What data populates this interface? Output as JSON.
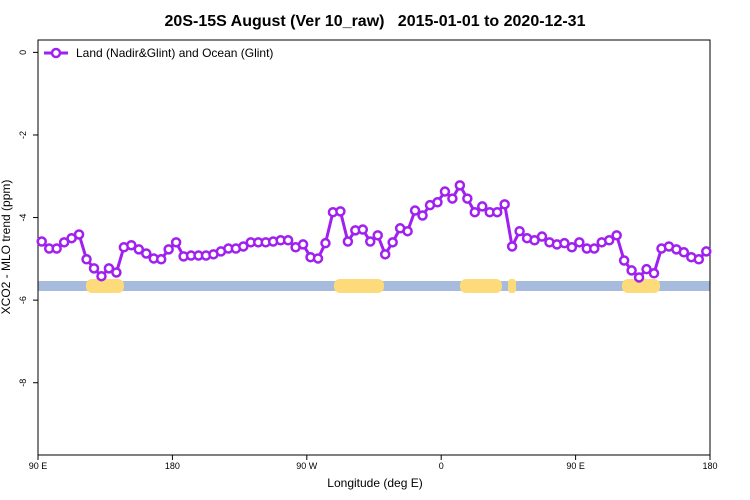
{
  "chart_data": {
    "type": "line",
    "title": "20S-15S August (Ver 10_raw)   2015-01-01 to 2020-12-31",
    "x_label": "Longitude (deg E)",
    "y_label": "XCO2 - MLO trend (ppm)",
    "legend_position": "top-left",
    "xlim": [
      90,
      540
    ],
    "ylim": [
      -9.75,
      0.3
    ],
    "xticks": [
      {
        "value": 90,
        "label": "90 E"
      },
      {
        "value": 180,
        "label": "180"
      },
      {
        "value": 270,
        "label": "90 W"
      },
      {
        "value": 360,
        "label": "0"
      },
      {
        "value": 450,
        "label": "90 E"
      },
      {
        "value": 540,
        "label": "180"
      }
    ],
    "yticks": [
      0,
      -2,
      -4,
      -6,
      -8
    ],
    "x": [
      92.5,
      97.5,
      102.5,
      107.5,
      112.5,
      117.5,
      122.5,
      127.5,
      132.5,
      137.5,
      142.5,
      147.5,
      152.5,
      157.5,
      162.5,
      167.5,
      172.5,
      177.5,
      182.5,
      187.5,
      192.5,
      197.5,
      202.5,
      207.5,
      212.5,
      217.5,
      222.5,
      227.5,
      232.5,
      237.5,
      242.5,
      247.5,
      252.5,
      257.5,
      262.5,
      267.5,
      272.5,
      277.5,
      282.5,
      287.5,
      292.5,
      297.5,
      302.5,
      307.5,
      312.5,
      317.5,
      322.5,
      327.5,
      332.5,
      337.5,
      342.5,
      347.5,
      352.5,
      357.5,
      362.5,
      367.5,
      372.5,
      377.5,
      382.5,
      387.5,
      392.5,
      397.5,
      402.5,
      407.5,
      412.5,
      417.5,
      422.5,
      427.5,
      432.5,
      437.5,
      442.5,
      447.5,
      452.5,
      457.5,
      462.5,
      467.5,
      472.5,
      477.5,
      482.5,
      487.5,
      492.5,
      497.5,
      502.5,
      507.5,
      512.5,
      517.5,
      522.5,
      527.5,
      532.5,
      537.5
    ],
    "series": [
      {
        "name": "Land (Nadir&Glint) and Ocean (Glint)",
        "color": "#a020f0",
        "values": [
          -4.58,
          -4.75,
          -4.75,
          -4.6,
          -4.5,
          -4.41,
          -5.01,
          -5.23,
          -5.42,
          -5.23,
          -5.33,
          -4.72,
          -4.67,
          -4.77,
          -4.87,
          -4.99,
          -5.01,
          -4.77,
          -4.6,
          -4.94,
          -4.92,
          -4.92,
          -4.92,
          -4.89,
          -4.82,
          -4.75,
          -4.75,
          -4.7,
          -4.6,
          -4.6,
          -4.6,
          -4.58,
          -4.55,
          -4.55,
          -4.72,
          -4.65,
          -4.96,
          -4.99,
          -4.62,
          -3.87,
          -3.85,
          -4.58,
          -4.31,
          -4.29,
          -4.58,
          -4.43,
          -4.89,
          -4.6,
          -4.26,
          -4.33,
          -3.83,
          -3.95,
          -3.7,
          -3.63,
          -3.37,
          -3.54,
          -3.22,
          -3.54,
          -3.87,
          -3.73,
          -3.87,
          -3.87,
          -3.68,
          -4.7,
          -4.33,
          -4.5,
          -4.55,
          -4.46,
          -4.6,
          -4.65,
          -4.62,
          -4.72,
          -4.6,
          -4.75,
          -4.75,
          -4.6,
          -4.55,
          -4.43,
          -5.04,
          -5.28,
          -5.45,
          -5.25,
          -5.35,
          -4.75,
          -4.7,
          -4.77,
          -4.84,
          -4.96,
          -5.01,
          -4.82
        ]
      }
    ]
  }
}
